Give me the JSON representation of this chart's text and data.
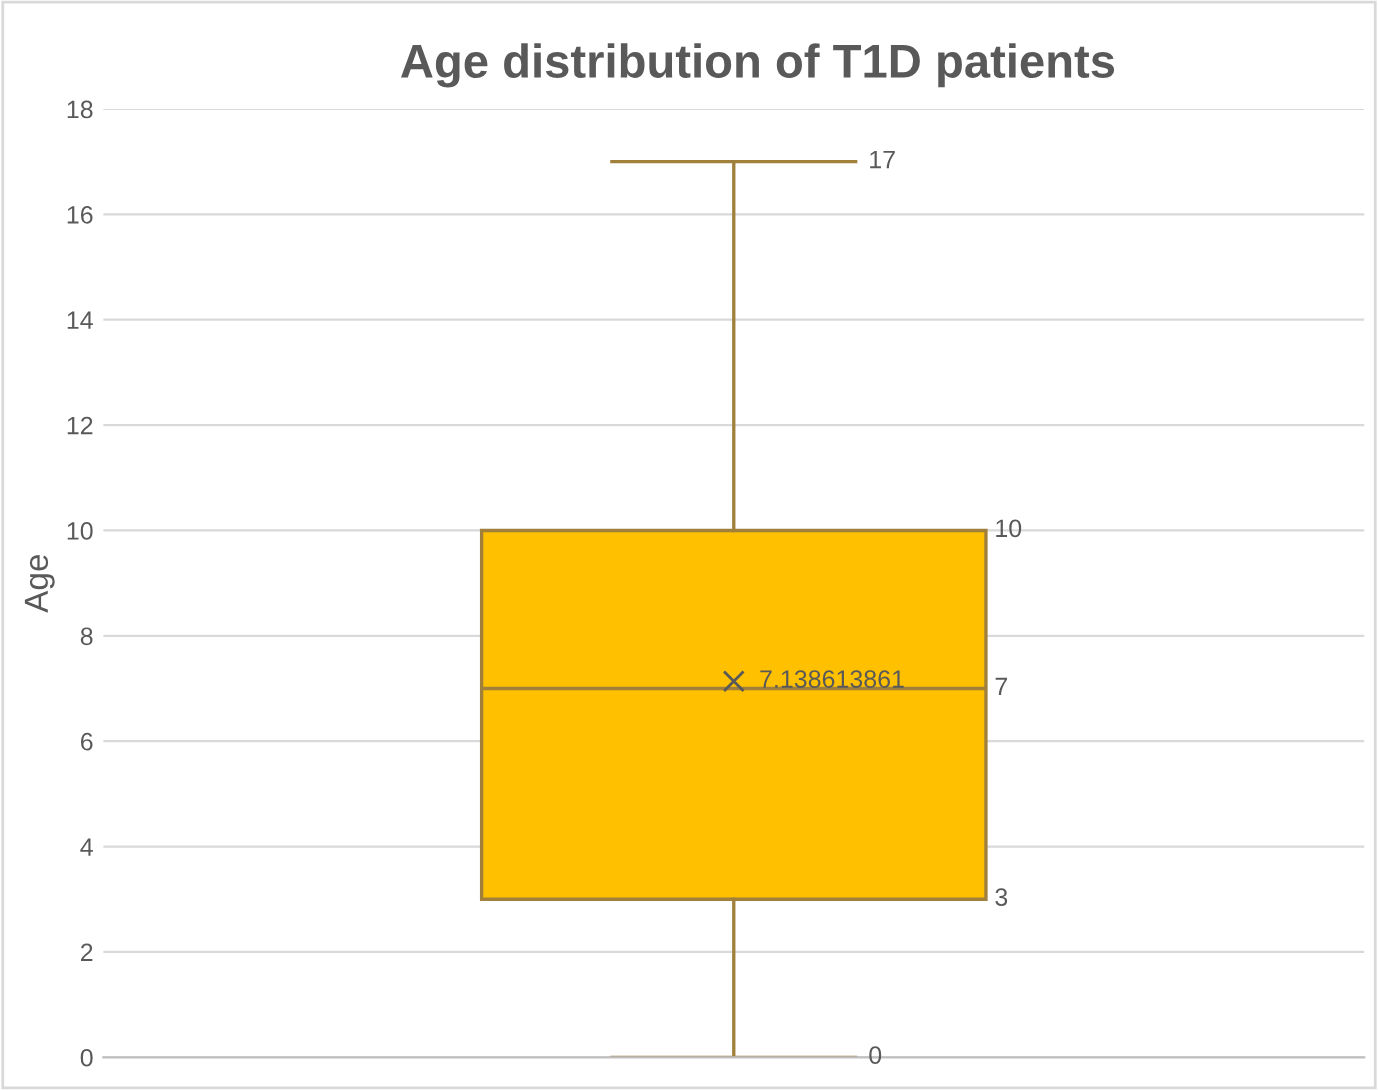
{
  "chart_data": {
    "type": "box",
    "title": "Age distribution of T1D patients",
    "ylabel": "Age",
    "categories": [
      null
    ],
    "boxes": [
      {
        "low": 0,
        "q1": 3,
        "median": 7,
        "q3": 10,
        "high": 17,
        "mean": 7.138613861
      }
    ],
    "color": "#ffc000",
    "ylim": [
      0,
      18
    ],
    "yticks": [
      0,
      2,
      4,
      6,
      8,
      10,
      12,
      14,
      16,
      18
    ],
    "grid": "y",
    "marker": "cross",
    "annotations": [
      "17",
      "10",
      "7",
      "3",
      "0",
      "7.138613861"
    ]
  }
}
